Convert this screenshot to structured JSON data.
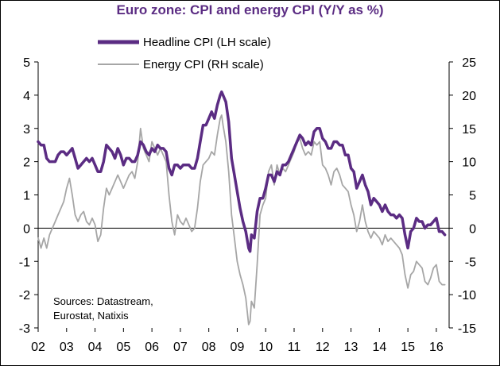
{
  "chart_data": {
    "type": "line",
    "title": "Euro zone: CPI and energy CPI (Y/Y as %)",
    "x_ticks": [
      "02",
      "03",
      "04",
      "05",
      "06",
      "07",
      "08",
      "09",
      "10",
      "11",
      "12",
      "13",
      "14",
      "15",
      "16"
    ],
    "x_range": [
      2002.0,
      2016.45
    ],
    "y_left": {
      "min": -3,
      "max": 5,
      "ticks": [
        "5",
        "4",
        "3",
        "2",
        "1",
        "0",
        "-1",
        "-2",
        "-3"
      ]
    },
    "y_right": {
      "min": -15,
      "max": 25,
      "ticks": [
        "25",
        "20",
        "15",
        "10",
        "5",
        "0",
        "-5",
        "-10",
        "-15"
      ]
    },
    "series": [
      {
        "name": "Headline CPI (LH scale)",
        "axis": "left",
        "color": "#5b2c83",
        "points": [
          [
            2002.0,
            2.6
          ],
          [
            2002.1,
            2.5
          ],
          [
            2002.2,
            2.5
          ],
          [
            2002.3,
            2.1
          ],
          [
            2002.4,
            2.0
          ],
          [
            2002.5,
            2.0
          ],
          [
            2002.6,
            2.0
          ],
          [
            2002.7,
            2.2
          ],
          [
            2002.8,
            2.3
          ],
          [
            2002.9,
            2.3
          ],
          [
            2003.0,
            2.2
          ],
          [
            2003.1,
            2.3
          ],
          [
            2003.2,
            2.4
          ],
          [
            2003.3,
            2.1
          ],
          [
            2003.4,
            1.8
          ],
          [
            2003.5,
            1.9
          ],
          [
            2003.6,
            2.0
          ],
          [
            2003.7,
            2.1
          ],
          [
            2003.8,
            2.0
          ],
          [
            2003.9,
            2.1
          ],
          [
            2004.0,
            1.9
          ],
          [
            2004.1,
            1.7
          ],
          [
            2004.2,
            1.7
          ],
          [
            2004.3,
            2.0
          ],
          [
            2004.4,
            2.5
          ],
          [
            2004.5,
            2.4
          ],
          [
            2004.6,
            2.3
          ],
          [
            2004.7,
            2.1
          ],
          [
            2004.8,
            2.4
          ],
          [
            2004.9,
            2.2
          ],
          [
            2005.0,
            1.9
          ],
          [
            2005.1,
            2.1
          ],
          [
            2005.2,
            2.1
          ],
          [
            2005.3,
            2.0
          ],
          [
            2005.4,
            2.0
          ],
          [
            2005.5,
            2.2
          ],
          [
            2005.6,
            2.6
          ],
          [
            2005.7,
            2.5
          ],
          [
            2005.8,
            2.3
          ],
          [
            2005.9,
            2.2
          ],
          [
            2006.0,
            2.4
          ],
          [
            2006.1,
            2.3
          ],
          [
            2006.2,
            2.5
          ],
          [
            2006.3,
            2.4
          ],
          [
            2006.4,
            2.4
          ],
          [
            2006.5,
            2.3
          ],
          [
            2006.6,
            1.8
          ],
          [
            2006.7,
            1.6
          ],
          [
            2006.8,
            1.9
          ],
          [
            2006.9,
            1.9
          ],
          [
            2007.0,
            1.8
          ],
          [
            2007.1,
            1.9
          ],
          [
            2007.2,
            1.9
          ],
          [
            2007.3,
            1.9
          ],
          [
            2007.4,
            1.8
          ],
          [
            2007.5,
            1.8
          ],
          [
            2007.6,
            2.1
          ],
          [
            2007.7,
            2.6
          ],
          [
            2007.8,
            3.1
          ],
          [
            2007.9,
            3.1
          ],
          [
            2008.0,
            3.3
          ],
          [
            2008.1,
            3.5
          ],
          [
            2008.2,
            3.3
          ],
          [
            2008.3,
            3.7
          ],
          [
            2008.4,
            4.0
          ],
          [
            2008.45,
            4.1
          ],
          [
            2008.5,
            4.0
          ],
          [
            2008.6,
            3.8
          ],
          [
            2008.7,
            3.2
          ],
          [
            2008.8,
            2.1
          ],
          [
            2008.9,
            1.6
          ],
          [
            2009.0,
            1.1
          ],
          [
            2009.1,
            0.6
          ],
          [
            2009.2,
            0.2
          ],
          [
            2009.3,
            -0.1
          ],
          [
            2009.4,
            -0.6
          ],
          [
            2009.45,
            -0.7
          ],
          [
            2009.5,
            -0.2
          ],
          [
            2009.6,
            -0.3
          ],
          [
            2009.7,
            0.5
          ],
          [
            2009.8,
            0.9
          ],
          [
            2009.9,
            0.9
          ],
          [
            2010.0,
            1.2
          ],
          [
            2010.1,
            1.6
          ],
          [
            2010.2,
            1.6
          ],
          [
            2010.3,
            1.4
          ],
          [
            2010.4,
            1.7
          ],
          [
            2010.5,
            1.6
          ],
          [
            2010.6,
            1.9
          ],
          [
            2010.7,
            1.9
          ],
          [
            2010.8,
            2.0
          ],
          [
            2010.9,
            2.2
          ],
          [
            2011.0,
            2.4
          ],
          [
            2011.1,
            2.6
          ],
          [
            2011.2,
            2.8
          ],
          [
            2011.3,
            2.7
          ],
          [
            2011.4,
            2.5
          ],
          [
            2011.5,
            2.6
          ],
          [
            2011.6,
            2.5
          ],
          [
            2011.7,
            2.9
          ],
          [
            2011.8,
            3.0
          ],
          [
            2011.9,
            3.0
          ],
          [
            2012.0,
            2.7
          ],
          [
            2012.1,
            2.6
          ],
          [
            2012.2,
            2.4
          ],
          [
            2012.3,
            2.4
          ],
          [
            2012.4,
            2.6
          ],
          [
            2012.5,
            2.6
          ],
          [
            2012.6,
            2.5
          ],
          [
            2012.7,
            2.5
          ],
          [
            2012.8,
            2.2
          ],
          [
            2012.9,
            2.2
          ],
          [
            2013.0,
            1.8
          ],
          [
            2013.1,
            1.7
          ],
          [
            2013.2,
            1.2
          ],
          [
            2013.3,
            1.4
          ],
          [
            2013.4,
            1.6
          ],
          [
            2013.5,
            1.3
          ],
          [
            2013.6,
            1.1
          ],
          [
            2013.7,
            0.7
          ],
          [
            2013.8,
            0.9
          ],
          [
            2013.9,
            0.8
          ],
          [
            2014.0,
            0.7
          ],
          [
            2014.1,
            0.5
          ],
          [
            2014.2,
            0.7
          ],
          [
            2014.3,
            0.5
          ],
          [
            2014.4,
            0.4
          ],
          [
            2014.5,
            0.4
          ],
          [
            2014.6,
            0.3
          ],
          [
            2014.7,
            0.4
          ],
          [
            2014.8,
            0.3
          ],
          [
            2014.9,
            -0.2
          ],
          [
            2015.0,
            -0.6
          ],
          [
            2015.1,
            -0.1
          ],
          [
            2015.2,
            0.0
          ],
          [
            2015.3,
            0.3
          ],
          [
            2015.4,
            0.2
          ],
          [
            2015.5,
            0.2
          ],
          [
            2015.6,
            0.0
          ],
          [
            2015.7,
            0.1
          ],
          [
            2015.8,
            0.1
          ],
          [
            2015.9,
            0.2
          ],
          [
            2016.0,
            0.3
          ],
          [
            2016.1,
            -0.1
          ],
          [
            2016.2,
            -0.1
          ],
          [
            2016.3,
            -0.2
          ]
        ]
      },
      {
        "name": "Energy CPI (RH scale)",
        "axis": "right",
        "color": "#a6a6a6",
        "points": [
          [
            2002.0,
            -1.5
          ],
          [
            2002.1,
            -3.0
          ],
          [
            2002.2,
            -1.5
          ],
          [
            2002.3,
            -3.0
          ],
          [
            2002.4,
            -1.0
          ],
          [
            2002.5,
            0.0
          ],
          [
            2002.6,
            1.0
          ],
          [
            2002.7,
            2.0
          ],
          [
            2002.8,
            3.0
          ],
          [
            2002.9,
            4.0
          ],
          [
            2003.0,
            6.0
          ],
          [
            2003.1,
            7.5
          ],
          [
            2003.2,
            5.0
          ],
          [
            2003.3,
            2.0
          ],
          [
            2003.4,
            1.0
          ],
          [
            2003.5,
            2.0
          ],
          [
            2003.6,
            2.5
          ],
          [
            2003.7,
            1.0
          ],
          [
            2003.8,
            0.5
          ],
          [
            2003.9,
            1.5
          ],
          [
            2004.0,
            0.5
          ],
          [
            2004.1,
            -2.0
          ],
          [
            2004.2,
            -1.0
          ],
          [
            2004.3,
            3.0
          ],
          [
            2004.4,
            6.0
          ],
          [
            2004.5,
            5.0
          ],
          [
            2004.6,
            6.0
          ],
          [
            2004.7,
            7.0
          ],
          [
            2004.8,
            8.0
          ],
          [
            2004.9,
            7.0
          ],
          [
            2005.0,
            6.0
          ],
          [
            2005.1,
            7.0
          ],
          [
            2005.2,
            8.0
          ],
          [
            2005.3,
            8.5
          ],
          [
            2005.4,
            7.5
          ],
          [
            2005.5,
            10.0
          ],
          [
            2005.6,
            15.0
          ],
          [
            2005.7,
            12.0
          ],
          [
            2005.8,
            11.0
          ],
          [
            2005.9,
            10.0
          ],
          [
            2006.0,
            13.0
          ],
          [
            2006.1,
            12.0
          ],
          [
            2006.2,
            11.0
          ],
          [
            2006.3,
            12.0
          ],
          [
            2006.4,
            11.0
          ],
          [
            2006.5,
            10.0
          ],
          [
            2006.6,
            5.0
          ],
          [
            2006.7,
            1.0
          ],
          [
            2006.8,
            -1.0
          ],
          [
            2006.9,
            2.0
          ],
          [
            2007.0,
            1.0
          ],
          [
            2007.1,
            0.5
          ],
          [
            2007.2,
            1.5
          ],
          [
            2007.3,
            0.5
          ],
          [
            2007.4,
            -0.5
          ],
          [
            2007.5,
            0.0
          ],
          [
            2007.6,
            3.0
          ],
          [
            2007.7,
            7.0
          ],
          [
            2007.8,
            9.5
          ],
          [
            2007.9,
            10.0
          ],
          [
            2008.0,
            10.5
          ],
          [
            2008.1,
            11.5
          ],
          [
            2008.2,
            11.0
          ],
          [
            2008.3,
            14.0
          ],
          [
            2008.4,
            16.5
          ],
          [
            2008.45,
            17.0
          ],
          [
            2008.5,
            15.5
          ],
          [
            2008.6,
            13.0
          ],
          [
            2008.7,
            8.5
          ],
          [
            2008.8,
            2.0
          ],
          [
            2008.9,
            -1.5
          ],
          [
            2009.0,
            -5.0
          ],
          [
            2009.1,
            -7.0
          ],
          [
            2009.2,
            -8.5
          ],
          [
            2009.3,
            -10.5
          ],
          [
            2009.4,
            -14.5
          ],
          [
            2009.45,
            -14.0
          ],
          [
            2009.5,
            -11.0
          ],
          [
            2009.6,
            -12.0
          ],
          [
            2009.7,
            -5.5
          ],
          [
            2009.8,
            2.0
          ],
          [
            2009.9,
            3.5
          ],
          [
            2010.0,
            4.5
          ],
          [
            2010.1,
            8.5
          ],
          [
            2010.2,
            9.5
          ],
          [
            2010.3,
            6.5
          ],
          [
            2010.4,
            9.5
          ],
          [
            2010.5,
            8.0
          ],
          [
            2010.6,
            9.0
          ],
          [
            2010.7,
            8.5
          ],
          [
            2010.8,
            9.5
          ],
          [
            2010.9,
            10.5
          ],
          [
            2011.0,
            11.5
          ],
          [
            2011.1,
            13.0
          ],
          [
            2011.2,
            13.5
          ],
          [
            2011.3,
            12.0
          ],
          [
            2011.4,
            11.0
          ],
          [
            2011.5,
            11.5
          ],
          [
            2011.6,
            11.0
          ],
          [
            2011.7,
            13.0
          ],
          [
            2011.8,
            12.5
          ],
          [
            2011.9,
            13.0
          ],
          [
            2012.0,
            9.5
          ],
          [
            2012.1,
            9.0
          ],
          [
            2012.2,
            8.0
          ],
          [
            2012.3,
            6.5
          ],
          [
            2012.4,
            8.5
          ],
          [
            2012.5,
            9.0
          ],
          [
            2012.6,
            8.0
          ],
          [
            2012.7,
            6.5
          ],
          [
            2012.8,
            6.0
          ],
          [
            2012.9,
            5.5
          ],
          [
            2013.0,
            3.5
          ],
          [
            2013.1,
            2.0
          ],
          [
            2013.2,
            -0.5
          ],
          [
            2013.3,
            1.0
          ],
          [
            2013.4,
            3.5
          ],
          [
            2013.5,
            1.0
          ],
          [
            2013.6,
            -0.5
          ],
          [
            2013.7,
            -1.5
          ],
          [
            2013.8,
            -0.5
          ],
          [
            2013.9,
            -1.0
          ],
          [
            2014.0,
            -1.5
          ],
          [
            2014.1,
            -2.5
          ],
          [
            2014.2,
            -1.0
          ],
          [
            2014.3,
            -2.0
          ],
          [
            2014.4,
            -1.5
          ],
          [
            2014.5,
            -2.0
          ],
          [
            2014.6,
            -2.5
          ],
          [
            2014.7,
            -3.0
          ],
          [
            2014.8,
            -4.0
          ],
          [
            2014.9,
            -7.0
          ],
          [
            2015.0,
            -9.0
          ],
          [
            2015.1,
            -7.0
          ],
          [
            2015.2,
            -6.5
          ],
          [
            2015.3,
            -5.0
          ],
          [
            2015.4,
            -5.5
          ],
          [
            2015.5,
            -6.0
          ],
          [
            2015.6,
            -8.0
          ],
          [
            2015.7,
            -8.5
          ],
          [
            2015.8,
            -7.5
          ],
          [
            2015.9,
            -6.0
          ],
          [
            2016.0,
            -5.5
          ],
          [
            2016.1,
            -8.0
          ],
          [
            2016.2,
            -8.5
          ],
          [
            2016.3,
            -8.5
          ]
        ]
      }
    ],
    "annotation": [
      "Sources: Datastream,",
      "Eurostat, Natixis"
    ]
  }
}
